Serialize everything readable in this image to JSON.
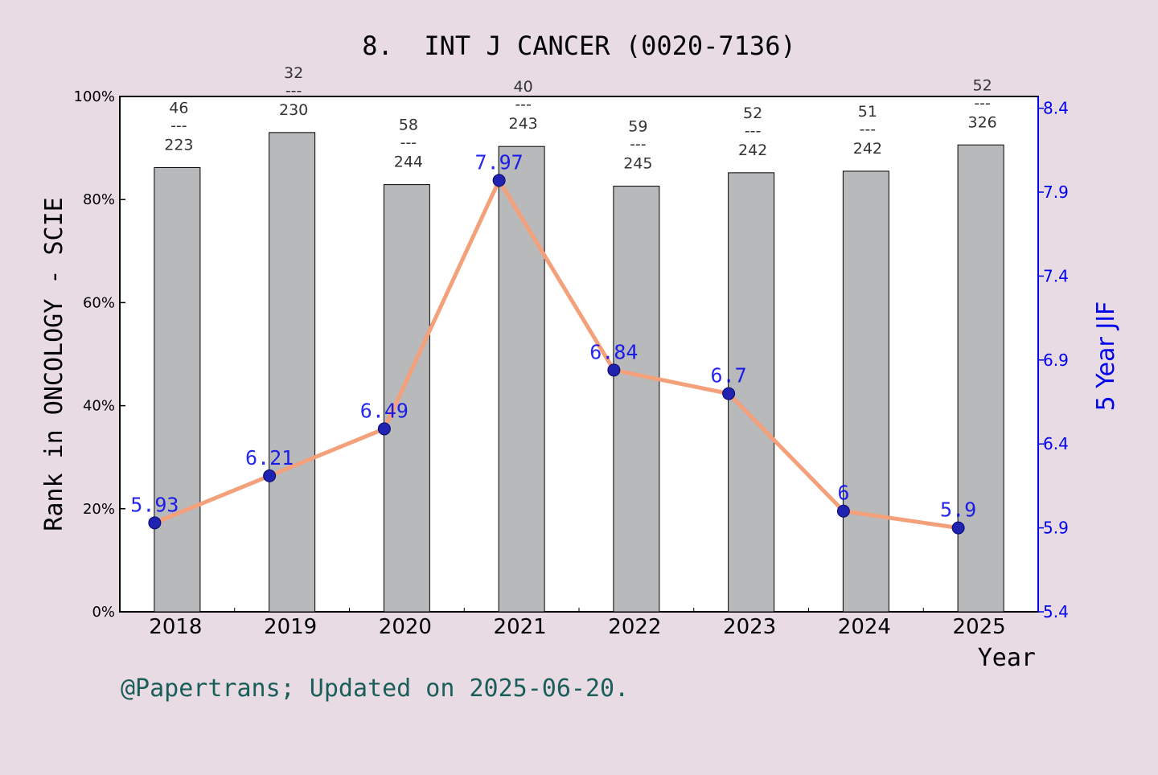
{
  "chart_data": {
    "type": "bar",
    "title": "8.  INT J CANCER (0020-7136)",
    "xlabel": "Year",
    "ylabel": "Rank in ONCOLOGY - SCIE",
    "y2label": "5 Year JIF",
    "footer": "@Papertrans; Updated on 2025-06-20.",
    "categories": [
      "2018",
      "2019",
      "2020",
      "2021",
      "2022",
      "2023",
      "2024",
      "2025"
    ],
    "ylim": [
      0,
      100
    ],
    "y_ticks": [
      "0%",
      "20%",
      "40%",
      "60%",
      "80%",
      "100%"
    ],
    "y2lim": [
      5.4,
      8.47
    ],
    "y2_ticks": [
      "5.4",
      "5.9",
      "6.4",
      "6.9",
      "7.4",
      "7.9",
      "8.4"
    ],
    "series": [
      {
        "kind": "bar",
        "values": [
          86.2,
          93.0,
          82.9,
          90.3,
          82.6,
          85.2,
          85.5,
          90.6
        ],
        "rank_labels": [
          {
            "rank": "46",
            "sep": "---",
            "total": "223"
          },
          {
            "rank": "32",
            "sep": "---",
            "total": "230"
          },
          {
            "rank": "58",
            "sep": "---",
            "total": "244"
          },
          {
            "rank": "40",
            "sep": "---",
            "total": "243"
          },
          {
            "rank": "59",
            "sep": "---",
            "total": "245"
          },
          {
            "rank": "52",
            "sep": "---",
            "total": "242"
          },
          {
            "rank": "51",
            "sep": "---",
            "total": "242"
          },
          {
            "rank": "52",
            "sep": "---",
            "total": "326"
          }
        ]
      },
      {
        "kind": "line",
        "axis": "right",
        "values": [
          5.93,
          6.21,
          6.49,
          7.97,
          6.84,
          6.7,
          6.0,
          5.9
        ],
        "labels": [
          "5.93",
          "6.21",
          "6.49",
          "7.97",
          "6.84",
          "6.7",
          "6",
          "5.9"
        ]
      }
    ],
    "colors": {
      "background": "#e9dbe3",
      "plot_background": "#ffffff",
      "bar": "#b8b9bb",
      "line": "#f4a07a",
      "marker": "#1f23b0",
      "right_axis": "#0000ee",
      "footer": "#1a5e5a"
    },
    "grid": false
  }
}
